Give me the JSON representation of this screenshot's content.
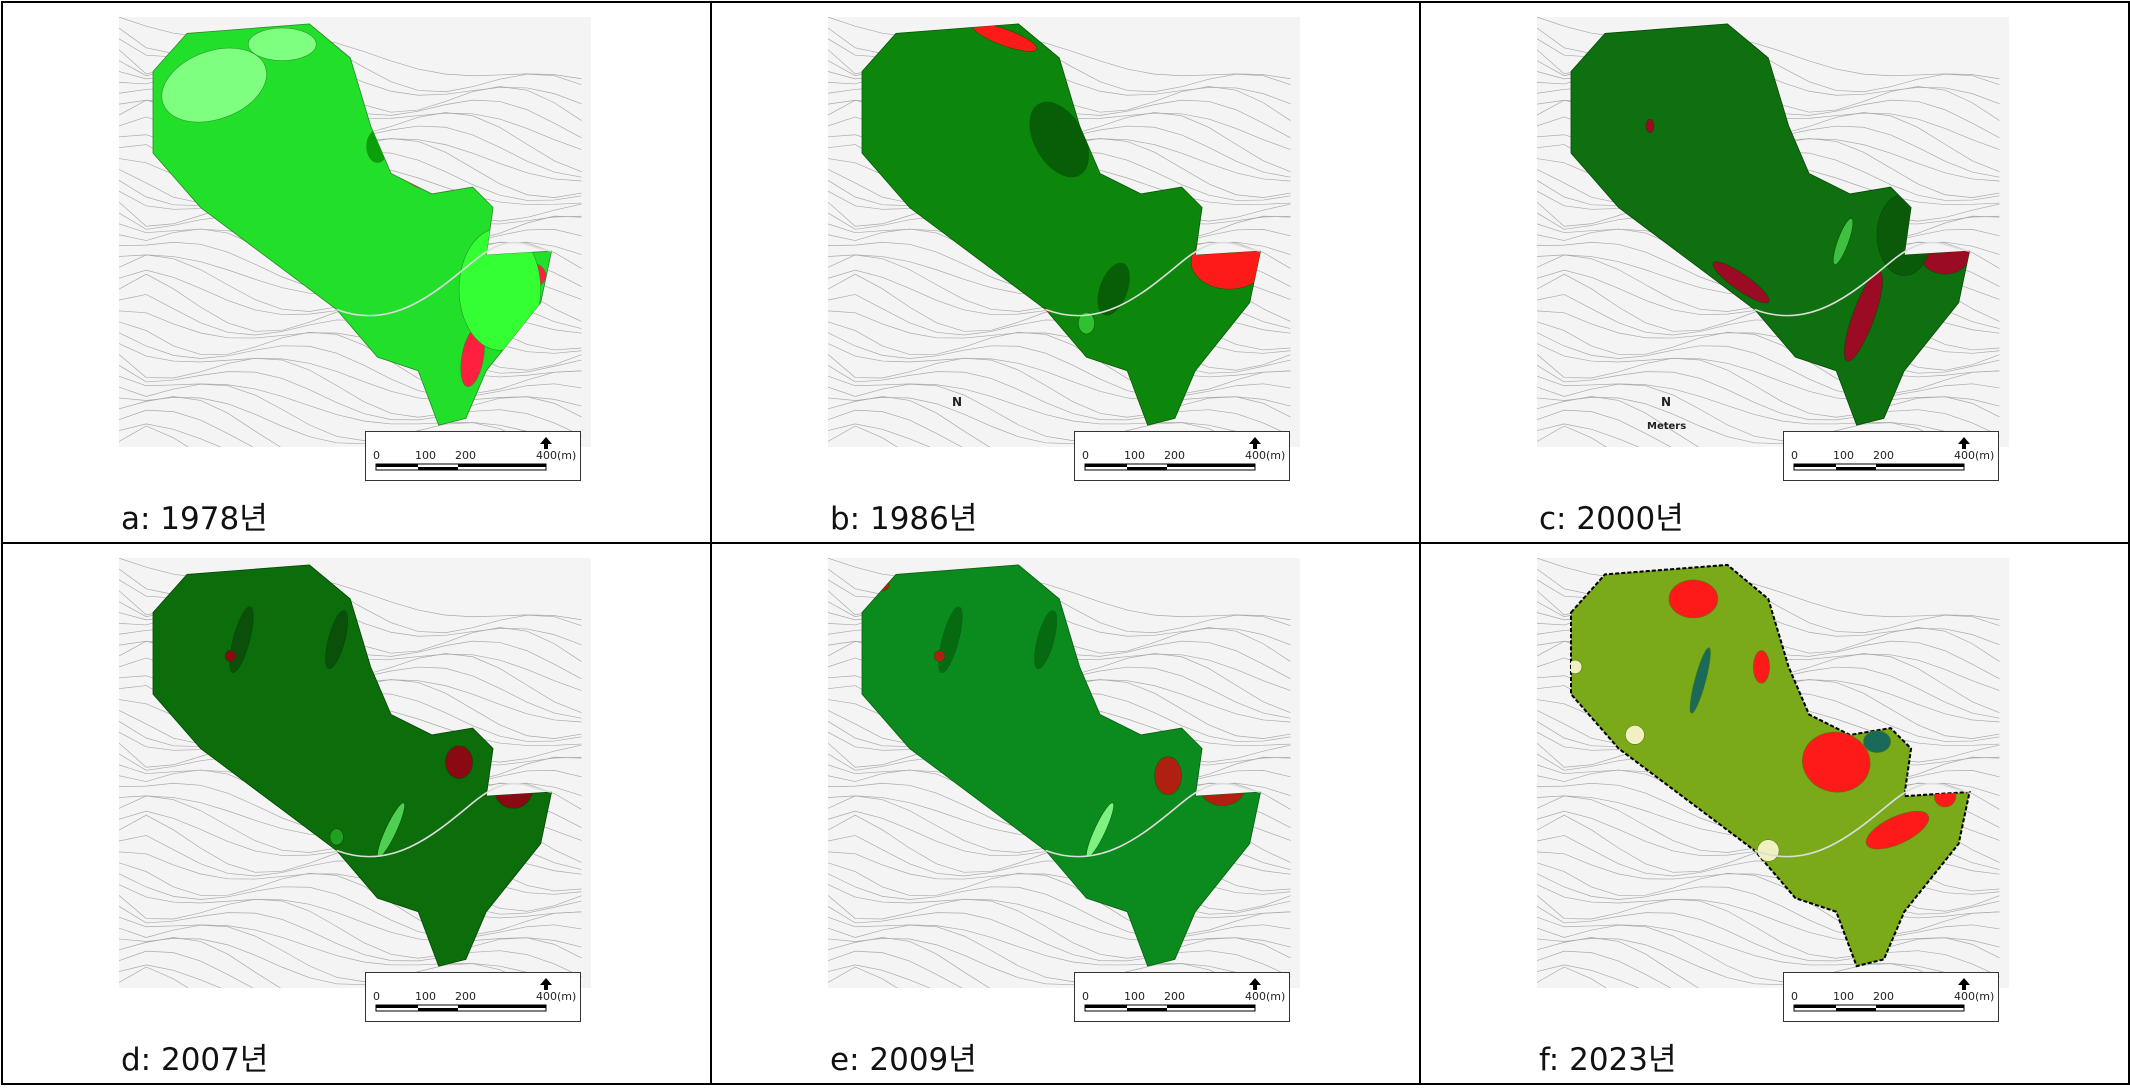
{
  "panels": [
    {
      "caption": "a: 1978년",
      "scale_labels": [
        "0",
        "100",
        "200",
        "400(m)"
      ]
    },
    {
      "caption": "b: 1986년",
      "scale_labels": [
        "0",
        "100",
        "200",
        "400(m)"
      ],
      "north_label": "N"
    },
    {
      "caption": "c: 2000년",
      "scale_labels": [
        "0",
        "100",
        "200",
        "400(m)"
      ],
      "north_label": "N",
      "north_unit": "Meters"
    },
    {
      "caption": "d: 2007년",
      "scale_labels": [
        "0",
        "100",
        "200",
        "400(m)"
      ]
    },
    {
      "caption": "e: 2009년",
      "scale_labels": [
        "0",
        "100",
        "200",
        "400(m)"
      ]
    },
    {
      "caption": "f: 2023년",
      "scale_labels": [
        "0",
        "100",
        "200",
        "400(m)"
      ]
    }
  ]
}
